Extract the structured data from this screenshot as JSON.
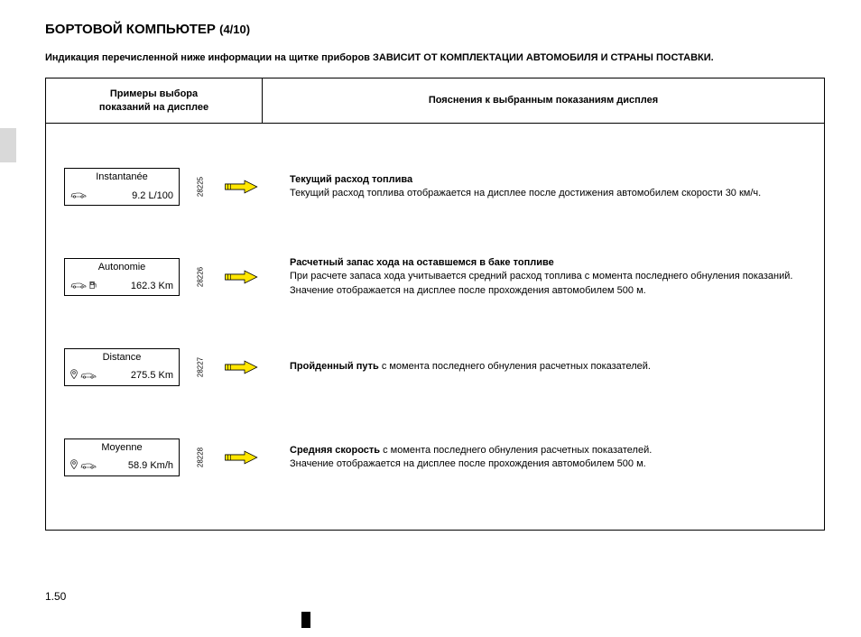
{
  "title_main": "БОРТОВОЙ КОМПЬЮТЕР ",
  "title_num": "(4/10)",
  "subtitle_a": "Индикация перечисленной ниже информации на щитке приборов ",
  "subtitle_b": "ЗАВИСИТ ОТ КОМПЛЕКТАЦИИ АВТОМОБИЛЯ И СТРАНЫ ПОСТАВКИ.",
  "header_left_l1": "Примеры выбора",
  "header_left_l2": "показаний на дисплее",
  "header_right": "Пояснения к выбранным показаниям дисплея",
  "rows": [
    {
      "display_label": "Instantanée",
      "display_value": "9.2 L/100",
      "ref": "28225",
      "icons": "car",
      "title": "Текущий расход топлива",
      "body": "Текущий расход топлива отображается на дисплее после достижения автомобилем скорости 30 км/ч."
    },
    {
      "display_label": "Autonomie",
      "display_value": "162.3 Km",
      "ref": "28226",
      "icons": "car-pump",
      "title": "Расчетный запас хода на оставшемся в баке топливе",
      "body": "При расчете запаса хода учитывается средний расход топлива с момента последнего обнуления показаний. Значение отображается на дисплее после прохождения автомобилем 500 м."
    },
    {
      "display_label": "Distance",
      "display_value": "275.5 Km",
      "ref": "28227",
      "icons": "pin-car",
      "title_inline": "Пройденный путь ",
      "body_inline": "с момента последнего обнуления расчетных показателей."
    },
    {
      "display_label": "Moyenne",
      "display_value": "58.9 Km/h",
      "ref": "28228",
      "icons": "pin-car",
      "title_inline": "Средняя скорость ",
      "body_inline": "с момента последнего обнуления расчетных показателей.",
      "body2": "Значение отображается на дисплее после прохождения автомобилем 500 м."
    }
  ],
  "page_number": "1.50",
  "colors": {
    "arrow_fill": "#ffe600",
    "arrow_stroke": "#000000"
  }
}
